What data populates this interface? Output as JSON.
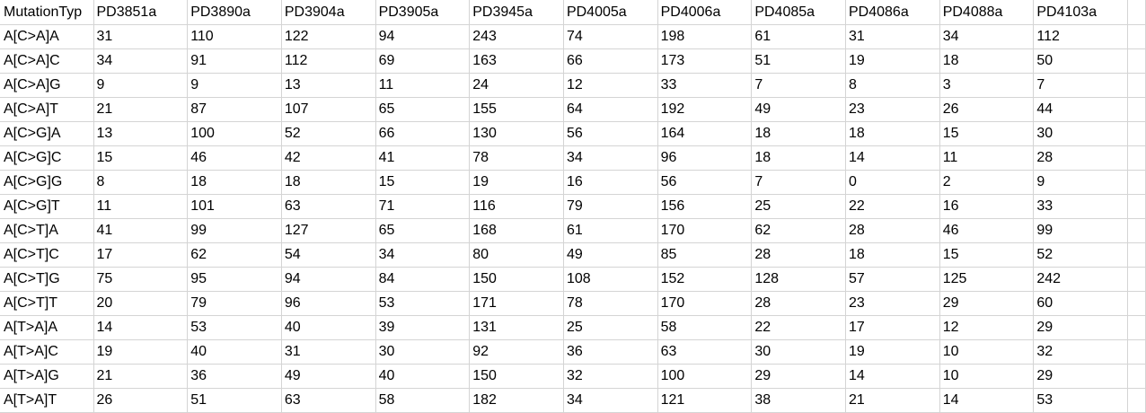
{
  "headers": [
    "MutationTyp",
    "PD3851a",
    "PD3890a",
    "PD3904a",
    "PD3905a",
    "PD3945a",
    "PD4005a",
    "PD4006a",
    "PD4085a",
    "PD4086a",
    "PD4088a",
    "PD4103a"
  ],
  "rows": [
    [
      "A[C>A]A",
      "31",
      "110",
      "122",
      "94",
      "243",
      "74",
      "198",
      "61",
      "31",
      "34",
      "112"
    ],
    [
      "A[C>A]C",
      "34",
      "91",
      "112",
      "69",
      "163",
      "66",
      "173",
      "51",
      "19",
      "18",
      "50"
    ],
    [
      "A[C>A]G",
      "9",
      "9",
      "13",
      "11",
      "24",
      "12",
      "33",
      "7",
      "8",
      "3",
      "7"
    ],
    [
      "A[C>A]T",
      "21",
      "87",
      "107",
      "65",
      "155",
      "64",
      "192",
      "49",
      "23",
      "26",
      "44"
    ],
    [
      "A[C>G]A",
      "13",
      "100",
      "52",
      "66",
      "130",
      "56",
      "164",
      "18",
      "18",
      "15",
      "30"
    ],
    [
      "A[C>G]C",
      "15",
      "46",
      "42",
      "41",
      "78",
      "34",
      "96",
      "18",
      "14",
      "11",
      "28"
    ],
    [
      "A[C>G]G",
      "8",
      "18",
      "18",
      "15",
      "19",
      "16",
      "56",
      "7",
      "0",
      "2",
      "9"
    ],
    [
      "A[C>G]T",
      "11",
      "101",
      "63",
      "71",
      "116",
      "79",
      "156",
      "25",
      "22",
      "16",
      "33"
    ],
    [
      "A[C>T]A",
      "41",
      "99",
      "127",
      "65",
      "168",
      "61",
      "170",
      "62",
      "28",
      "46",
      "99"
    ],
    [
      "A[C>T]C",
      "17",
      "62",
      "54",
      "34",
      "80",
      "49",
      "85",
      "28",
      "18",
      "15",
      "52"
    ],
    [
      "A[C>T]G",
      "75",
      "95",
      "94",
      "84",
      "150",
      "108",
      "152",
      "128",
      "57",
      "125",
      "242"
    ],
    [
      "A[C>T]T",
      "20",
      "79",
      "96",
      "53",
      "171",
      "78",
      "170",
      "28",
      "23",
      "29",
      "60"
    ],
    [
      "A[T>A]A",
      "14",
      "53",
      "40",
      "39",
      "131",
      "25",
      "58",
      "22",
      "17",
      "12",
      "29"
    ],
    [
      "A[T>A]C",
      "19",
      "40",
      "31",
      "30",
      "92",
      "36",
      "63",
      "30",
      "19",
      "10",
      "32"
    ],
    [
      "A[T>A]G",
      "21",
      "36",
      "49",
      "40",
      "150",
      "32",
      "100",
      "29",
      "14",
      "10",
      "29"
    ],
    [
      "A[T>A]T",
      "26",
      "51",
      "63",
      "58",
      "182",
      "34",
      "121",
      "38",
      "21",
      "14",
      "53"
    ]
  ]
}
